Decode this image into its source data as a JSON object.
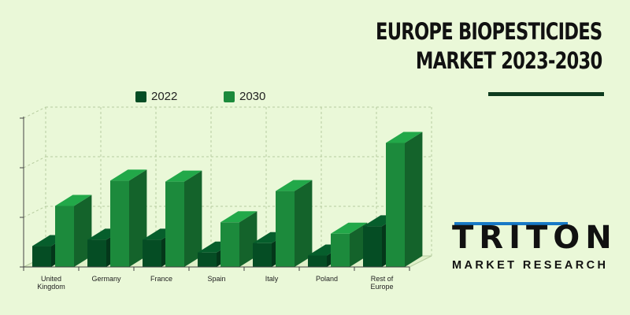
{
  "title": {
    "line1": "EUROPE BIOPESTICIDES",
    "line2": "MARKET 2023-2030"
  },
  "brand": {
    "name": "TRITON",
    "tagline": "MARKET RESEARCH",
    "accent": "#1779c6"
  },
  "colors": {
    "background": "#eaf8d8",
    "series_2022": "#054d24",
    "series_2030": "#1c8a3c"
  },
  "chart_data": {
    "type": "bar",
    "title": "EUROPE BIOPESTICIDES MARKET 2023-2030",
    "categories": [
      [
        "United",
        "Kingdom"
      ],
      [
        "Germany"
      ],
      [
        "France"
      ],
      [
        "Spain"
      ],
      [
        "Italy"
      ],
      [
        "Poland"
      ],
      [
        "Rest of",
        "Europe"
      ]
    ],
    "series": [
      {
        "name": "2022",
        "color": "#054d24",
        "values": [
          0.42,
          0.55,
          0.55,
          0.29,
          0.48,
          0.23,
          0.82
        ]
      },
      {
        "name": "2030",
        "color": "#1c8a3c",
        "values": [
          1.23,
          1.74,
          1.72,
          0.9,
          1.53,
          0.67,
          2.5
        ]
      }
    ],
    "ylim": [
      0,
      3
    ],
    "y_ticks": 3,
    "grid": true,
    "legend_position": "top-left",
    "style": "3d"
  }
}
